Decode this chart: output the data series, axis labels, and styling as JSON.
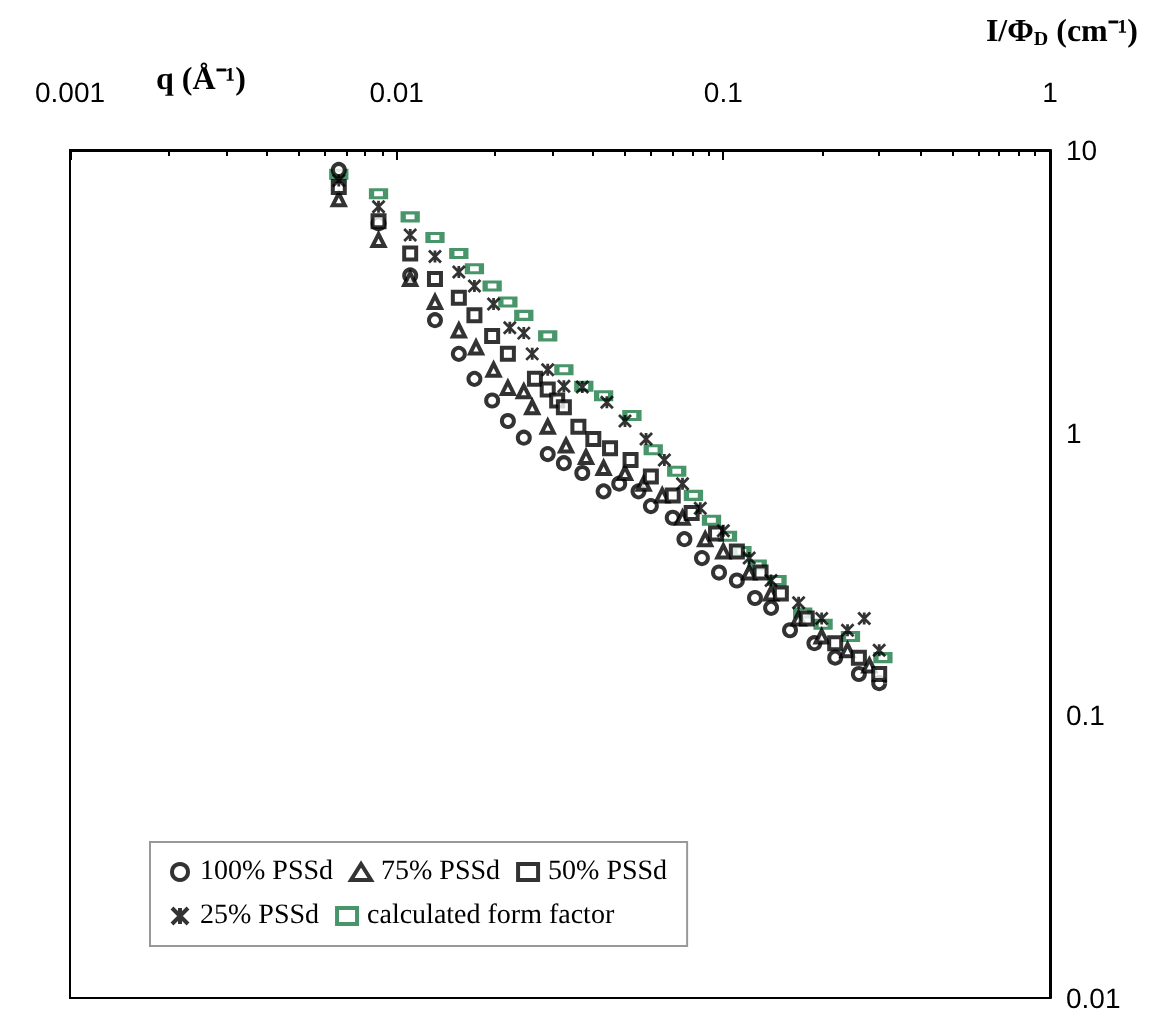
{
  "chart_data": {
    "type": "scatter",
    "xlabel": "q (Å⁻¹)",
    "ylabel": "I/Φ$_{D}$ (cm⁻¹)",
    "log": "xy",
    "grid": false,
    "legend": "bottom left",
    "xlim": [
      0.001,
      1
    ],
    "xticks": [
      0.001,
      0.01,
      0.1,
      1
    ],
    "ylim": [
      0.01,
      10
    ],
    "yticks": [
      0.01,
      0.1,
      1,
      10
    ],
    "series": [
      {
        "name": "100% PSSd",
        "color": "#000000",
        "marker": "circle",
        "x": [
          0.00665,
          0.0088,
          0.011,
          0.0131,
          0.0155,
          0.0173,
          0.0196,
          0.0219,
          0.0245,
          0.029,
          0.0325,
          0.037,
          0.043,
          0.048,
          0.055,
          0.06,
          0.07,
          0.076,
          0.086,
          0.097,
          0.11,
          0.125,
          0.14,
          0.16,
          0.19,
          0.22,
          0.26,
          0.3
        ],
        "values": [
          8.5,
          5.5,
          3.6,
          2.5,
          1.9,
          1.55,
          1.3,
          1.1,
          0.96,
          0.84,
          0.78,
          0.72,
          0.62,
          0.66,
          0.62,
          0.55,
          0.5,
          0.42,
          0.36,
          0.32,
          0.3,
          0.26,
          0.24,
          0.2,
          0.18,
          0.16,
          0.14,
          0.13
        ]
      },
      {
        "name": "75% PSSd",
        "color": "#000000",
        "marker": "triangle",
        "x": [
          0.00665,
          0.0088,
          0.011,
          0.0131,
          0.0155,
          0.0175,
          0.0198,
          0.0219,
          0.0245,
          0.026,
          0.029,
          0.033,
          0.038,
          0.043,
          0.05,
          0.057,
          0.065,
          0.075,
          0.088,
          0.1,
          0.12,
          0.14,
          0.17,
          0.2,
          0.24,
          0.28
        ],
        "values": [
          6.7,
          4.8,
          3.5,
          2.9,
          2.3,
          2.0,
          1.67,
          1.44,
          1.4,
          1.23,
          1.05,
          0.9,
          0.82,
          0.75,
          0.72,
          0.66,
          0.6,
          0.5,
          0.42,
          0.38,
          0.32,
          0.27,
          0.22,
          0.19,
          0.17,
          0.15
        ]
      },
      {
        "name": "50% PSSd",
        "color": "#000000",
        "marker": "square",
        "x": [
          0.00665,
          0.0088,
          0.011,
          0.0131,
          0.0155,
          0.0173,
          0.0196,
          0.0219,
          0.0265,
          0.029,
          0.031,
          0.0325,
          0.036,
          0.04,
          0.045,
          0.052,
          0.06,
          0.07,
          0.08,
          0.095,
          0.11,
          0.13,
          0.15,
          0.18,
          0.22,
          0.26,
          0.3
        ],
        "values": [
          7.4,
          5.6,
          4.3,
          3.5,
          3.0,
          2.6,
          2.2,
          1.9,
          1.55,
          1.42,
          1.3,
          1.23,
          1.05,
          0.95,
          0.88,
          0.8,
          0.7,
          0.6,
          0.52,
          0.44,
          0.38,
          0.32,
          0.27,
          0.22,
          0.18,
          0.16,
          0.14
        ]
      },
      {
        "name": "25% PSSd",
        "color": "#000000",
        "marker": "cross",
        "x": [
          0.00665,
          0.0088,
          0.011,
          0.0131,
          0.0155,
          0.0173,
          0.0198,
          0.0222,
          0.0245,
          0.026,
          0.029,
          0.0325,
          0.037,
          0.044,
          0.05,
          0.058,
          0.066,
          0.075,
          0.085,
          0.1,
          0.12,
          0.14,
          0.17,
          0.2,
          0.24,
          0.27,
          0.3
        ],
        "values": [
          7.8,
          6.3,
          5.0,
          4.2,
          3.7,
          3.3,
          2.85,
          2.35,
          2.25,
          1.9,
          1.67,
          1.46,
          1.45,
          1.28,
          1.1,
          0.95,
          0.8,
          0.66,
          0.54,
          0.45,
          0.36,
          0.3,
          0.25,
          0.22,
          0.2,
          0.22,
          0.17
        ]
      },
      {
        "name": "calculated form factor",
        "color": "#1a7a45",
        "marker": "square",
        "x": [
          0.00665,
          0.0088,
          0.011,
          0.0131,
          0.0155,
          0.0173,
          0.0196,
          0.0219,
          0.0245,
          0.029,
          0.0325,
          0.0374,
          0.043,
          0.0525,
          0.061,
          0.072,
          0.081,
          0.092,
          0.103,
          0.114,
          0.127,
          0.146,
          0.175,
          0.202,
          0.245,
          0.308
        ],
        "values": [
          8.2,
          7.0,
          5.8,
          4.9,
          4.3,
          3.8,
          3.3,
          2.9,
          2.6,
          2.2,
          1.67,
          1.46,
          1.35,
          1.15,
          0.87,
          0.73,
          0.6,
          0.49,
          0.43,
          0.38,
          0.34,
          0.3,
          0.23,
          0.21,
          0.19,
          0.16
        ]
      }
    ]
  }
}
